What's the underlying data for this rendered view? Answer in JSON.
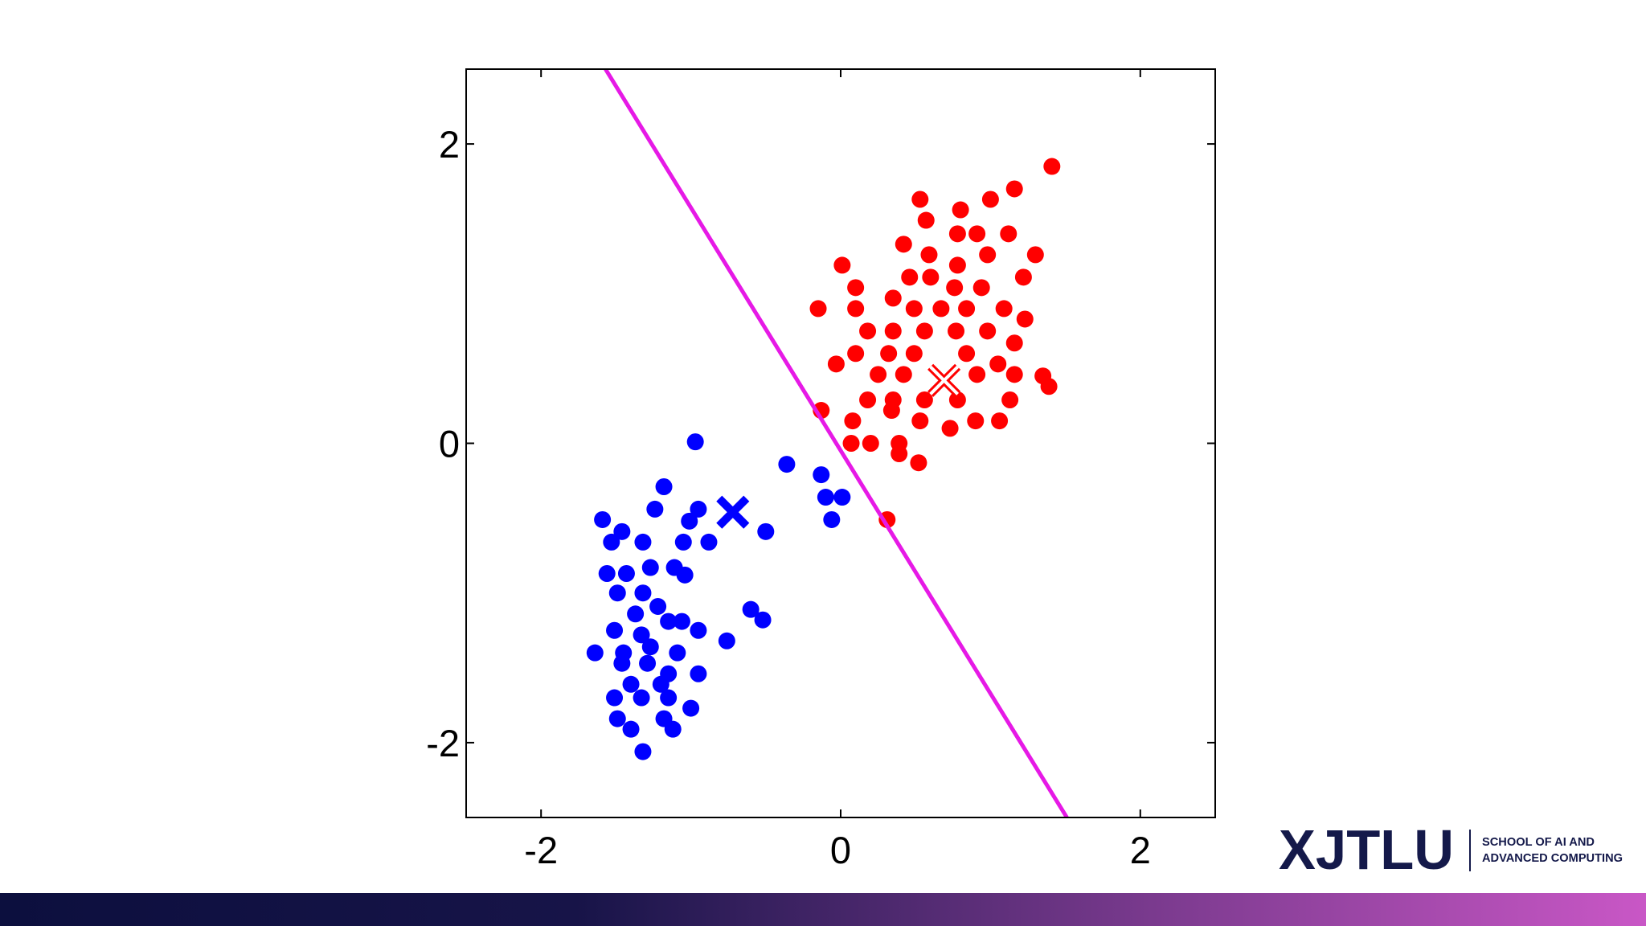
{
  "chart_data": {
    "type": "scatter",
    "xlim": [
      -2.5,
      2.5
    ],
    "ylim": [
      -2.5,
      2.5
    ],
    "xticks": [
      -2,
      0,
      2
    ],
    "yticks": [
      -2,
      0,
      2
    ],
    "series": [
      {
        "kind": "dots",
        "color": "#ff0000",
        "x": [
          1.41,
          1.16,
          1.0,
          0.53,
          0.8,
          0.57,
          0.78,
          0.91,
          1.12,
          0.42,
          0.59,
          0.98,
          1.3,
          0.01,
          0.78,
          0.46,
          0.6,
          1.22,
          0.1,
          0.76,
          0.94,
          -0.15,
          0.1,
          0.35,
          0.49,
          0.67,
          0.84,
          1.09,
          1.23,
          0.18,
          0.35,
          0.56,
          0.77,
          0.98,
          1.16,
          0.1,
          0.32,
          0.49,
          0.84,
          1.05,
          -0.03,
          0.25,
          0.42,
          0.91,
          1.16,
          1.35,
          1.39,
          0.18,
          0.35,
          0.56,
          0.78,
          1.13,
          -0.13,
          0.34,
          0.53,
          0.73,
          0.9,
          1.06,
          0.08,
          0.07,
          0.2,
          0.39,
          0.39,
          0.52,
          0.31
        ],
        "values": [
          1.85,
          1.7,
          1.63,
          1.63,
          1.56,
          1.49,
          1.4,
          1.4,
          1.4,
          1.33,
          1.26,
          1.26,
          1.26,
          1.19,
          1.19,
          1.11,
          1.11,
          1.11,
          1.04,
          1.04,
          1.04,
          0.9,
          0.9,
          0.97,
          0.9,
          0.9,
          0.9,
          0.9,
          0.83,
          0.75,
          0.75,
          0.75,
          0.75,
          0.75,
          0.67,
          0.6,
          0.6,
          0.6,
          0.6,
          0.53,
          0.53,
          0.46,
          0.46,
          0.46,
          0.46,
          0.45,
          0.38,
          0.29,
          0.29,
          0.29,
          0.29,
          0.29,
          0.22,
          0.22,
          0.15,
          0.1,
          0.15,
          0.15,
          0.15,
          0.0,
          0.0,
          0.0,
          -0.07,
          -0.13,
          -0.51
        ]
      },
      {
        "kind": "dots",
        "color": "#0000ff",
        "x": [
          -0.97,
          -0.36,
          -0.13,
          -0.1,
          0.01,
          -0.06,
          -1.18,
          -1.24,
          -0.95,
          -1.01,
          -1.59,
          -1.46,
          -1.53,
          -1.32,
          -1.05,
          -0.88,
          -0.5,
          -1.56,
          -1.43,
          -1.27,
          -1.11,
          -1.04,
          -1.49,
          -1.32,
          -1.37,
          -1.22,
          -1.15,
          -1.06,
          -0.6,
          -0.52,
          -1.51,
          -1.33,
          -0.95,
          -0.76,
          -1.64,
          -1.45,
          -1.27,
          -1.09,
          -1.46,
          -1.29,
          -1.15,
          -0.95,
          -1.4,
          -1.2,
          -1.51,
          -1.33,
          -1.15,
          -1.0,
          -1.49,
          -1.18,
          -1.4,
          -1.12,
          -1.32
        ],
        "values": [
          0.01,
          -0.14,
          -0.21,
          -0.36,
          -0.36,
          -0.51,
          -0.29,
          -0.44,
          -0.44,
          -0.52,
          -0.51,
          -0.59,
          -0.66,
          -0.66,
          -0.66,
          -0.66,
          -0.59,
          -0.87,
          -0.87,
          -0.83,
          -0.83,
          -0.88,
          -1.0,
          -1.0,
          -1.14,
          -1.09,
          -1.19,
          -1.19,
          -1.11,
          -1.18,
          -1.25,
          -1.28,
          -1.25,
          -1.32,
          -1.4,
          -1.4,
          -1.36,
          -1.4,
          -1.47,
          -1.47,
          -1.54,
          -1.54,
          -1.61,
          -1.61,
          -1.7,
          -1.7,
          -1.7,
          -1.77,
          -1.84,
          -1.84,
          -1.91,
          -1.91,
          -2.06
        ]
      },
      {
        "kind": "cross",
        "color": "#ff0000",
        "x": [
          0.69
        ],
        "values": [
          0.42
        ]
      },
      {
        "kind": "cross",
        "color": "#0000ff",
        "x": [
          -0.72
        ],
        "values": [
          -0.46
        ]
      },
      {
        "kind": "line",
        "color": "#e619e6",
        "x": [
          -1.57,
          1.51
        ],
        "values": [
          2.5,
          -2.5
        ]
      }
    ]
  },
  "logo": {
    "name": "XJTLU",
    "line1": "SCHOOL OF AI AND",
    "line2": "ADVANCED COMPUTING"
  }
}
